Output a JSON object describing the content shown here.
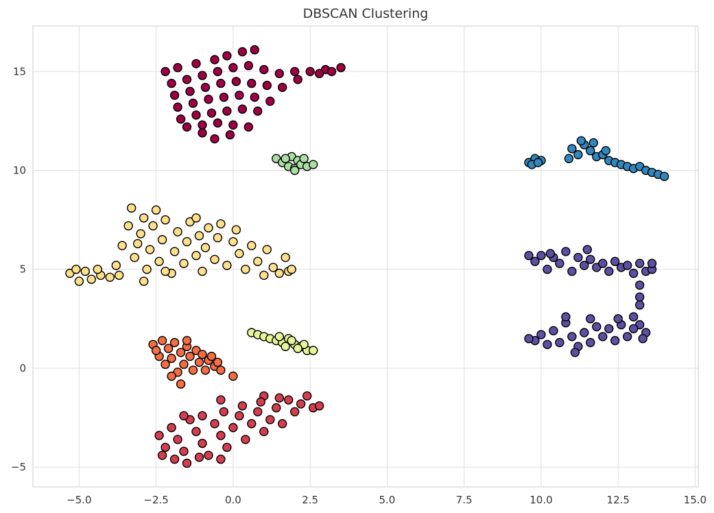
{
  "chart_data": {
    "type": "scatter",
    "title": "DBSCAN Clustering",
    "xlabel": "",
    "ylabel": "",
    "xlim": [
      -6.5,
      15.1
    ],
    "ylim": [
      -6.0,
      17.3
    ],
    "grid": true,
    "x_ticks": [
      -5.0,
      -2.5,
      0.0,
      2.5,
      5.0,
      7.5,
      10.0,
      12.5,
      15.0
    ],
    "x_tick_labels": [
      "−5.0",
      "−2.5",
      "0.0",
      "2.5",
      "5.0",
      "7.5",
      "10.0",
      "12.5",
      "15.0"
    ],
    "y_ticks": [
      -5,
      0,
      5,
      10,
      15
    ],
    "y_tick_labels": [
      "−5",
      "0",
      "5",
      "10",
      "15"
    ],
    "series": [
      {
        "color": "#9e0142",
        "points": [
          [
            -2.2,
            15.0
          ],
          [
            -1.8,
            15.2
          ],
          [
            -1.2,
            15.4
          ],
          [
            -0.6,
            15.6
          ],
          [
            -0.2,
            15.8
          ],
          [
            0.3,
            16.0
          ],
          [
            0.7,
            16.1
          ],
          [
            -2.0,
            14.4
          ],
          [
            -1.5,
            14.6
          ],
          [
            -1.0,
            14.8
          ],
          [
            -0.5,
            15.0
          ],
          [
            0.0,
            15.2
          ],
          [
            0.5,
            15.3
          ],
          [
            1.0,
            15.1
          ],
          [
            1.5,
            14.9
          ],
          [
            2.0,
            15.0
          ],
          [
            2.5,
            15.0
          ],
          [
            3.0,
            15.1
          ],
          [
            3.5,
            15.2
          ],
          [
            3.2,
            15.0
          ],
          [
            2.8,
            14.9
          ],
          [
            -1.9,
            13.8
          ],
          [
            -1.4,
            14.0
          ],
          [
            -0.9,
            14.2
          ],
          [
            -0.4,
            14.4
          ],
          [
            0.1,
            14.5
          ],
          [
            0.6,
            14.4
          ],
          [
            1.1,
            14.3
          ],
          [
            -1.8,
            13.2
          ],
          [
            -1.3,
            13.4
          ],
          [
            -0.8,
            13.6
          ],
          [
            -0.3,
            13.7
          ],
          [
            0.2,
            13.8
          ],
          [
            0.7,
            13.7
          ],
          [
            1.2,
            13.5
          ],
          [
            -1.7,
            12.6
          ],
          [
            -1.2,
            12.8
          ],
          [
            -0.7,
            12.9
          ],
          [
            -0.2,
            13.0
          ],
          [
            0.3,
            13.1
          ],
          [
            0.8,
            13.0
          ],
          [
            -1.5,
            12.2
          ],
          [
            -1.0,
            12.3
          ],
          [
            -0.5,
            12.4
          ],
          [
            0.0,
            12.3
          ],
          [
            0.5,
            12.2
          ],
          [
            -0.6,
            11.6
          ],
          [
            -0.1,
            11.8
          ],
          [
            -1.0,
            11.9
          ],
          [
            1.6,
            14.2
          ],
          [
            2.1,
            14.6
          ]
        ]
      },
      {
        "color": "#d53e4f",
        "points": [
          [
            -2.4,
            -3.4
          ],
          [
            -2.2,
            -4.0
          ],
          [
            -2.0,
            -3.0
          ],
          [
            -1.8,
            -3.6
          ],
          [
            -1.6,
            -4.2
          ],
          [
            -1.4,
            -2.6
          ],
          [
            -1.2,
            -3.2
          ],
          [
            -1.0,
            -3.8
          ],
          [
            -0.8,
            -4.4
          ],
          [
            -1.9,
            -4.6
          ],
          [
            -1.5,
            -4.8
          ],
          [
            -1.1,
            -4.5
          ],
          [
            -0.6,
            -2.8
          ],
          [
            -0.4,
            -3.4
          ],
          [
            -0.2,
            -4.0
          ],
          [
            0.0,
            -3.0
          ],
          [
            0.2,
            -2.4
          ],
          [
            0.4,
            -3.6
          ],
          [
            0.6,
            -2.8
          ],
          [
            0.8,
            -2.2
          ],
          [
            1.0,
            -3.2
          ],
          [
            1.2,
            -2.6
          ],
          [
            1.4,
            -2.0
          ],
          [
            1.6,
            -2.8
          ],
          [
            1.8,
            -1.6
          ],
          [
            2.0,
            -2.2
          ],
          [
            2.2,
            -1.8
          ],
          [
            2.4,
            -1.4
          ],
          [
            2.6,
            -2.0
          ],
          [
            2.8,
            -1.9
          ],
          [
            1.0,
            -1.4
          ],
          [
            1.5,
            -1.5
          ],
          [
            -1.0,
            -2.4
          ],
          [
            -1.6,
            -2.4
          ],
          [
            -2.3,
            -4.4
          ],
          [
            -0.4,
            -4.6
          ],
          [
            -0.3,
            -2.2
          ],
          [
            -0.4,
            -1.6
          ],
          [
            0.3,
            -1.9
          ],
          [
            0.9,
            -1.7
          ]
        ]
      },
      {
        "color": "#f46d43",
        "points": [
          [
            -2.6,
            1.2
          ],
          [
            -2.4,
            0.6
          ],
          [
            -2.3,
            1.4
          ],
          [
            -2.2,
            0.2
          ],
          [
            -2.1,
            1.0
          ],
          [
            -2.0,
            0.5
          ],
          [
            -1.9,
            1.3
          ],
          [
            -1.8,
            -0.2
          ],
          [
            -1.7,
            0.8
          ],
          [
            -1.6,
            0.2
          ],
          [
            -1.5,
            1.1
          ],
          [
            -1.4,
            0.6
          ],
          [
            -1.3,
            -0.1
          ],
          [
            -1.2,
            0.9
          ],
          [
            -1.1,
            0.3
          ],
          [
            -1.0,
            0.7
          ],
          [
            -0.9,
            -0.1
          ],
          [
            -0.8,
            0.4
          ],
          [
            -0.7,
            0.6
          ],
          [
            -0.6,
            0.1
          ],
          [
            -0.5,
            0.3
          ],
          [
            -0.4,
            -0.1
          ],
          [
            -1.7,
            -0.8
          ],
          [
            -2.5,
            0.9
          ],
          [
            -1.5,
            1.4
          ],
          [
            -2.0,
            -0.4
          ],
          [
            0.0,
            -0.4
          ]
        ]
      },
      {
        "color": "#fee08b",
        "points": [
          [
            -5.3,
            4.8
          ],
          [
            -5.1,
            5.0
          ],
          [
            -5.0,
            4.4
          ],
          [
            -4.8,
            4.9
          ],
          [
            -4.6,
            4.5
          ],
          [
            -4.3,
            4.7
          ],
          [
            -4.0,
            4.6
          ],
          [
            -3.8,
            5.2
          ],
          [
            -3.6,
            6.2
          ],
          [
            -3.4,
            7.2
          ],
          [
            -3.3,
            8.1
          ],
          [
            -3.2,
            5.6
          ],
          [
            -3.0,
            6.8
          ],
          [
            -2.9,
            7.6
          ],
          [
            -2.8,
            5.0
          ],
          [
            -2.7,
            6.0
          ],
          [
            -2.6,
            7.2
          ],
          [
            -2.5,
            8.0
          ],
          [
            -2.4,
            5.4
          ],
          [
            -2.3,
            6.5
          ],
          [
            -2.2,
            7.5
          ],
          [
            -2.0,
            4.8
          ],
          [
            -1.9,
            5.9
          ],
          [
            -1.8,
            6.9
          ],
          [
            -1.6,
            5.3
          ],
          [
            -1.5,
            6.4
          ],
          [
            -1.4,
            7.4
          ],
          [
            -1.2,
            5.7
          ],
          [
            -1.1,
            6.7
          ],
          [
            -1.0,
            4.9
          ],
          [
            -0.9,
            6.1
          ],
          [
            -0.8,
            7.1
          ],
          [
            -0.6,
            5.5
          ],
          [
            -0.5,
            6.6
          ],
          [
            -0.4,
            7.3
          ],
          [
            -0.2,
            5.2
          ],
          [
            0.0,
            6.4
          ],
          [
            0.1,
            7.0
          ],
          [
            0.2,
            5.8
          ],
          [
            0.4,
            5.0
          ],
          [
            0.6,
            6.2
          ],
          [
            0.8,
            5.4
          ],
          [
            1.0,
            4.7
          ],
          [
            1.1,
            6.0
          ],
          [
            1.3,
            5.1
          ],
          [
            1.5,
            4.8
          ],
          [
            1.7,
            5.6
          ],
          [
            1.8,
            4.9
          ],
          [
            1.9,
            5.0
          ],
          [
            -2.9,
            4.4
          ],
          [
            -2.2,
            4.9
          ],
          [
            -3.1,
            6.3
          ],
          [
            -1.2,
            7.6
          ],
          [
            -3.7,
            4.7
          ],
          [
            -4.4,
            5.0
          ]
        ]
      },
      {
        "color": "#e6f598",
        "points": [
          [
            0.6,
            1.8
          ],
          [
            0.8,
            1.7
          ],
          [
            1.0,
            1.6
          ],
          [
            1.2,
            1.5
          ],
          [
            1.4,
            1.4
          ],
          [
            1.6,
            1.3
          ],
          [
            1.8,
            1.5
          ],
          [
            2.0,
            1.2
          ],
          [
            2.2,
            1.1
          ],
          [
            2.4,
            0.9
          ],
          [
            2.6,
            0.9
          ],
          [
            1.5,
            1.6
          ],
          [
            1.9,
            1.4
          ],
          [
            2.3,
            1.2
          ],
          [
            1.7,
            1.1
          ],
          [
            2.1,
            1.0
          ]
        ]
      },
      {
        "color": "#abdda4",
        "points": [
          [
            1.4,
            10.6
          ],
          [
            1.6,
            10.4
          ],
          [
            1.8,
            10.2
          ],
          [
            1.9,
            10.7
          ],
          [
            2.0,
            10.1
          ],
          [
            2.1,
            10.5
          ],
          [
            2.2,
            10.3
          ],
          [
            2.3,
            10.6
          ],
          [
            2.4,
            10.2
          ],
          [
            2.6,
            10.3
          ],
          [
            2.0,
            10.0
          ],
          [
            1.7,
            10.6
          ]
        ]
      },
      {
        "color": "#3288bd",
        "points": [
          [
            9.6,
            10.4
          ],
          [
            9.8,
            10.6
          ],
          [
            10.0,
            10.5
          ],
          [
            9.7,
            10.3
          ],
          [
            9.9,
            10.4
          ],
          [
            10.9,
            10.6
          ],
          [
            11.0,
            11.1
          ],
          [
            11.2,
            10.8
          ],
          [
            11.4,
            11.3
          ],
          [
            11.6,
            11.0
          ],
          [
            11.8,
            10.7
          ],
          [
            12.0,
            10.8
          ],
          [
            12.2,
            10.5
          ],
          [
            12.4,
            10.4
          ],
          [
            12.6,
            10.3
          ],
          [
            12.8,
            10.2
          ],
          [
            13.0,
            10.1
          ],
          [
            13.2,
            10.2
          ],
          [
            13.4,
            10.0
          ],
          [
            13.6,
            9.9
          ],
          [
            13.8,
            9.8
          ],
          [
            14.0,
            9.7
          ],
          [
            11.3,
            11.5
          ],
          [
            11.7,
            11.4
          ],
          [
            12.1,
            11.0
          ]
        ]
      },
      {
        "color": "#5e4fa2",
        "points": [
          [
            9.6,
            5.7
          ],
          [
            9.8,
            5.4
          ],
          [
            10.0,
            5.7
          ],
          [
            10.2,
            5.0
          ],
          [
            10.4,
            5.6
          ],
          [
            10.6,
            5.3
          ],
          [
            10.8,
            5.9
          ],
          [
            11.0,
            4.9
          ],
          [
            11.2,
            5.6
          ],
          [
            11.4,
            5.2
          ],
          [
            11.6,
            5.5
          ],
          [
            11.8,
            5.1
          ],
          [
            12.0,
            5.3
          ],
          [
            12.2,
            4.9
          ],
          [
            12.4,
            5.4
          ],
          [
            12.6,
            5.1
          ],
          [
            12.8,
            5.2
          ],
          [
            13.0,
            4.8
          ],
          [
            13.2,
            5.3
          ],
          [
            13.4,
            4.9
          ],
          [
            13.6,
            5.0
          ],
          [
            13.6,
            5.3
          ],
          [
            13.2,
            4.2
          ],
          [
            13.2,
            3.6
          ],
          [
            13.2,
            3.2
          ],
          [
            13.0,
            2.6
          ],
          [
            13.2,
            2.2
          ],
          [
            13.4,
            1.8
          ],
          [
            13.3,
            1.5
          ],
          [
            13.0,
            2.0
          ],
          [
            12.8,
            1.6
          ],
          [
            12.6,
            2.2
          ],
          [
            12.4,
            1.4
          ],
          [
            12.2,
            2.0
          ],
          [
            12.0,
            1.6
          ],
          [
            11.8,
            2.1
          ],
          [
            11.6,
            1.3
          ],
          [
            11.4,
            1.8
          ],
          [
            11.2,
            1.1
          ],
          [
            11.0,
            1.6
          ],
          [
            10.8,
            2.3
          ],
          [
            10.6,
            1.3
          ],
          [
            10.4,
            1.9
          ],
          [
            10.2,
            1.2
          ],
          [
            10.0,
            1.7
          ],
          [
            9.8,
            1.4
          ],
          [
            9.6,
            1.5
          ],
          [
            10.8,
            2.6
          ],
          [
            11.1,
            0.8
          ],
          [
            11.6,
            2.5
          ],
          [
            12.5,
            2.5
          ],
          [
            10.3,
            5.8
          ],
          [
            11.5,
            6.0
          ]
        ]
      }
    ]
  }
}
